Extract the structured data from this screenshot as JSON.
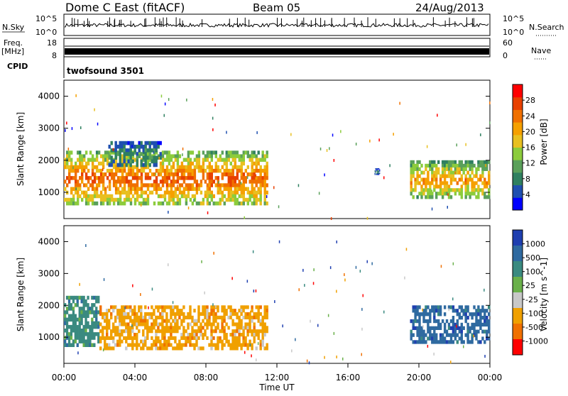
{
  "header": {
    "title": "Dome C East (fitACF)",
    "beam": "Beam 05",
    "date": "24/Aug/2013"
  },
  "top_panels": {
    "nsky_label": "N.Sky",
    "nsky_ticks": [
      "10^5",
      "10^0"
    ],
    "nsearch_label": "N.Search",
    "nsearch_ticks": [
      "10^5",
      "10^0"
    ],
    "freq_label": "Freq.",
    "freq_unit": "[MHz]",
    "freq_ticks": [
      "18",
      "8"
    ],
    "nave_label": "Nave",
    "nave_ticks": [
      "60",
      "0"
    ],
    "cpid_label": "CPID",
    "cpid_text": "twofsound 3501"
  },
  "x_axis": {
    "label": "Time UT",
    "ticks": [
      "00:00",
      "04:00",
      "08:00",
      "12:00",
      "16:00",
      "20:00",
      "00:00"
    ]
  },
  "power_panel": {
    "ylabel": "Slant Range [km]",
    "yticks": [
      "1000",
      "2000",
      "3000",
      "4000"
    ],
    "colorbar_label": "Power [dB]",
    "colorbar_ticks": [
      "4",
      "8",
      "12",
      "16",
      "20",
      "24",
      "28"
    ],
    "colors": [
      "#0000ff",
      "#1f4fb0",
      "#2f8060",
      "#5aa05a",
      "#8ccc3c",
      "#e8c020",
      "#f5a000",
      "#f07000",
      "#e84000",
      "#ff0000"
    ]
  },
  "velocity_panel": {
    "ylabel": "Slant Range [km]",
    "yticks": [
      "1000",
      "2000",
      "3000",
      "4000"
    ],
    "colorbar_label": "Velocity [m s^-1]",
    "colorbar_ticks": [
      "1000",
      "500",
      "100",
      "25",
      "-25",
      "-100",
      "-500",
      "-1000"
    ],
    "colors": [
      "#1f3fb0",
      "#2f6aa0",
      "#3a8a80",
      "#6ab04a",
      "#c8c8c8",
      "#f0a000",
      "#f07000",
      "#ff0000"
    ]
  },
  "chart_data": [
    {
      "type": "heatmap",
      "title": "Power",
      "xlabel": "Time UT",
      "ylabel": "Slant Range [km]",
      "xlim": [
        0,
        24
      ],
      "ylim": [
        180,
        4500
      ],
      "colorbar": {
        "label": "Power [dB]",
        "range": [
          0,
          32
        ],
        "ticks": [
          4,
          8,
          12,
          16,
          20,
          24,
          28
        ]
      },
      "regions": [
        {
          "t_start": 0.0,
          "t_end": 11.5,
          "range_low": 600,
          "range_high": 2300,
          "power_dB": 26
        },
        {
          "t_start": 2.5,
          "t_end": 5.5,
          "range_low": 1800,
          "range_high": 2600,
          "power_dB": 10
        },
        {
          "t_start": 17.5,
          "t_end": 17.8,
          "range_low": 1550,
          "range_high": 1750,
          "power_dB": 8
        },
        {
          "t_start": 19.5,
          "t_end": 24.0,
          "range_low": 800,
          "range_high": 2000,
          "power_dB": 22
        }
      ]
    },
    {
      "type": "heatmap",
      "title": "Velocity",
      "xlabel": "Time UT",
      "ylabel": "Slant Range [km]",
      "xlim": [
        0,
        24
      ],
      "ylim": [
        180,
        4500
      ],
      "colorbar": {
        "label": "Velocity [m s^-1]",
        "ticks": [
          1000,
          500,
          100,
          25,
          -25,
          -100,
          -500,
          -1000
        ]
      },
      "regions": [
        {
          "t_start": 0.0,
          "t_end": 2.0,
          "range_low": 700,
          "range_high": 2300,
          "velocity": 100
        },
        {
          "t_start": 2.0,
          "t_end": 11.5,
          "range_low": 600,
          "range_high": 2000,
          "velocity": -100
        },
        {
          "t_start": 19.5,
          "t_end": 24.0,
          "range_low": 800,
          "range_high": 2000,
          "velocity": 500
        }
      ]
    }
  ]
}
